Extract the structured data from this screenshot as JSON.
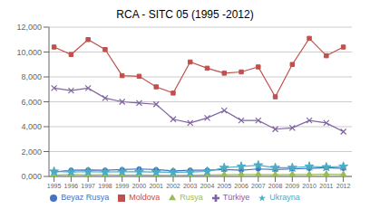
{
  "chart_data": {
    "type": "line",
    "title": "RCA - SITC 05 (1995 -2012)",
    "x": [
      1995,
      1996,
      1997,
      1998,
      1999,
      2000,
      2001,
      2002,
      2003,
      2004,
      2005,
      2006,
      2007,
      2008,
      2009,
      2010,
      2011,
      2012
    ],
    "series": [
      {
        "name": "Beyaz Rusya",
        "color": "#4472C4",
        "marker": "circle",
        "values": [
          350,
          500,
          520,
          500,
          550,
          600,
          550,
          450,
          500,
          500,
          550,
          500,
          600,
          550,
          600,
          650,
          700,
          650
        ]
      },
      {
        "name": "Moldova",
        "color": "#C0504D",
        "marker": "square",
        "values": [
          10400,
          9800,
          11000,
          10200,
          8100,
          8050,
          7200,
          6700,
          9200,
          8700,
          8300,
          8400,
          8800,
          6400,
          9000,
          11100,
          9700,
          10400
        ]
      },
      {
        "name": "Rusya",
        "color": "#9BBB59",
        "marker": "triangle",
        "values": [
          100,
          150,
          120,
          130,
          110,
          120,
          100,
          90,
          100,
          120,
          130,
          150,
          160,
          140,
          150,
          160,
          170,
          150
        ]
      },
      {
        "name": "Türkiye",
        "color": "#8064A2",
        "marker": "x",
        "values": [
          7100,
          6900,
          7100,
          6300,
          6000,
          5900,
          5800,
          4600,
          4300,
          4700,
          5300,
          4500,
          4500,
          3800,
          3900,
          4500,
          4300,
          3600
        ]
      },
      {
        "name": "Ukrayna",
        "color": "#4BACC6",
        "marker": "star",
        "values": [
          400,
          350,
          380,
          350,
          380,
          370,
          350,
          330,
          350,
          400,
          700,
          800,
          900,
          700,
          700,
          800,
          750,
          800
        ]
      }
    ],
    "xlim": [
      1994.7,
      2012.5
    ],
    "xticks": [
      1995,
      1996,
      1997,
      1998,
      1999,
      2000,
      2001,
      2002,
      2003,
      2004,
      2005,
      2006,
      2007,
      2008,
      2009,
      2010,
      2011,
      2012
    ],
    "ylim": [
      0,
      12000
    ],
    "yticks": [
      {
        "value": 0,
        "label": "0,000"
      },
      {
        "value": 2000,
        "label": "2,000"
      },
      {
        "value": 4000,
        "label": "4,000"
      },
      {
        "value": 6000,
        "label": "6,000"
      },
      {
        "value": 8000,
        "label": "8,000"
      },
      {
        "value": 10000,
        "label": "10,000"
      },
      {
        "value": 12000,
        "label": "12,000"
      }
    ],
    "grid": true,
    "legend": "bottom"
  }
}
